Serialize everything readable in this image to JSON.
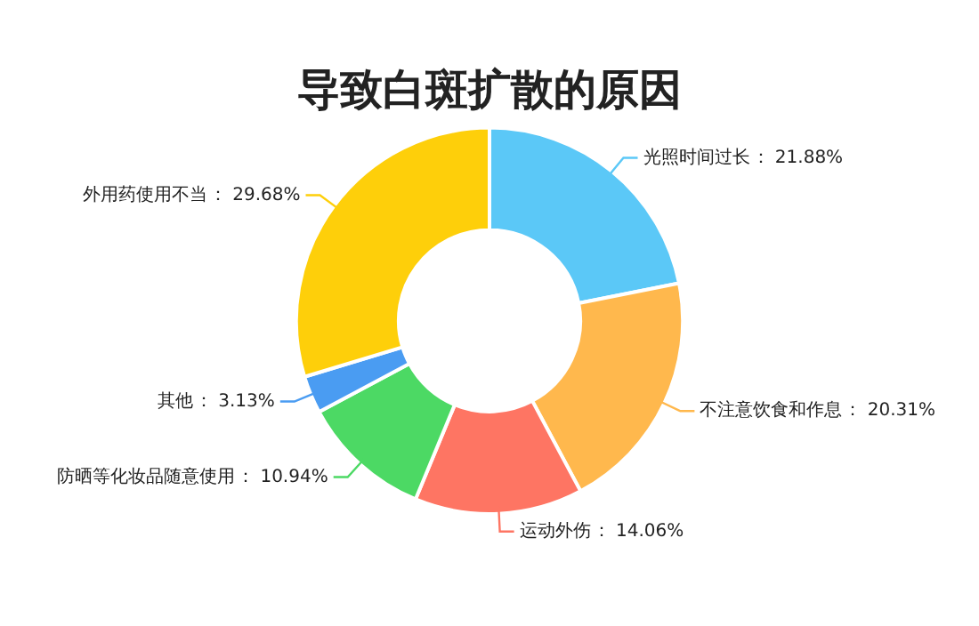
{
  "chart_data": {
    "type": "donut",
    "title": "导致白斑扩散的原因",
    "categories": [
      "光照时间过长",
      "不注意饮食和作息",
      "运动外伤",
      "防晒等化妆品随意使用",
      "其他",
      "外用药使用不当"
    ],
    "value_labels": [
      "： 21.88%",
      "： 20.31%",
      "： 14.06%",
      "： 10.94%",
      "： 3.13%",
      "： 29.68%"
    ],
    "values": [
      21.88,
      20.31,
      14.06,
      10.94,
      3.13,
      29.68
    ],
    "colors": [
      "#5bc8f7",
      "#ffb84d",
      "#fe7563",
      "#4cd964",
      "#4a9cf2",
      "#fecf0a"
    ],
    "legend": false
  }
}
